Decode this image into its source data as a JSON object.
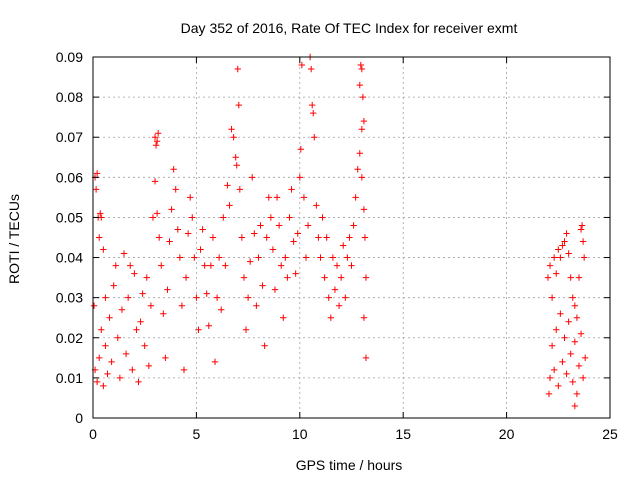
{
  "chart_data": {
    "type": "scatter",
    "title": "Day 352 of 2016, Rate Of TEC Index for receiver exmt",
    "xlabel": "GPS time / hours",
    "ylabel": "ROTI / TECUs",
    "xlim": [
      0,
      25
    ],
    "ylim": [
      0,
      0.09
    ],
    "xticks": [
      0,
      5,
      10,
      15,
      20,
      25
    ],
    "xtick_labels": [
      "0",
      "5",
      "10",
      "15",
      "20",
      "25"
    ],
    "yticks": [
      0,
      0.01,
      0.02,
      0.03,
      0.04,
      0.05,
      0.06,
      0.07,
      0.08,
      0.09
    ],
    "ytick_labels": [
      "0",
      "0.01",
      "0.02",
      "0.03",
      "0.04",
      "0.05",
      "0.06",
      "0.07",
      "0.08",
      "0.09"
    ],
    "grid": true,
    "marker": "plus",
    "color": "#ff0000",
    "series": [
      {
        "points": [
          [
            0.05,
            0.028
          ],
          [
            0.1,
            0.06
          ],
          [
            0.15,
            0.057
          ],
          [
            0.2,
            0.061
          ],
          [
            0.25,
            0.05
          ],
          [
            0.3,
            0.045
          ],
          [
            0.35,
            0.051
          ],
          [
            0.4,
            0.05
          ],
          [
            0.5,
            0.042
          ],
          [
            0.6,
            0.03
          ],
          [
            0.1,
            0.012
          ],
          [
            0.2,
            0.009
          ],
          [
            0.3,
            0.015
          ],
          [
            0.4,
            0.022
          ],
          [
            0.5,
            0.008
          ],
          [
            0.6,
            0.018
          ],
          [
            0.7,
            0.011
          ],
          [
            0.8,
            0.025
          ],
          [
            0.9,
            0.014
          ],
          [
            1.0,
            0.033
          ],
          [
            1.1,
            0.038
          ],
          [
            1.2,
            0.02
          ],
          [
            1.3,
            0.01
          ],
          [
            1.4,
            0.027
          ],
          [
            1.5,
            0.041
          ],
          [
            1.6,
            0.016
          ],
          [
            1.7,
            0.03
          ],
          [
            1.8,
            0.038
          ],
          [
            1.9,
            0.012
          ],
          [
            2.0,
            0.036
          ],
          [
            2.1,
            0.022
          ],
          [
            2.2,
            0.009
          ],
          [
            2.3,
            0.024
          ],
          [
            2.4,
            0.031
          ],
          [
            2.5,
            0.018
          ],
          [
            2.6,
            0.035
          ],
          [
            2.7,
            0.013
          ],
          [
            2.8,
            0.028
          ],
          [
            2.9,
            0.05
          ],
          [
            3.0,
            0.07
          ],
          [
            3.05,
            0.068
          ],
          [
            3.1,
            0.069
          ],
          [
            3.15,
            0.071
          ],
          [
            3.0,
            0.059
          ],
          [
            3.1,
            0.051
          ],
          [
            3.2,
            0.045
          ],
          [
            3.3,
            0.038
          ],
          [
            3.4,
            0.026
          ],
          [
            3.5,
            0.015
          ],
          [
            3.6,
            0.032
          ],
          [
            3.7,
            0.044
          ],
          [
            3.8,
            0.052
          ],
          [
            3.9,
            0.062
          ],
          [
            4.0,
            0.057
          ],
          [
            4.1,
            0.047
          ],
          [
            4.2,
            0.04
          ],
          [
            4.3,
            0.028
          ],
          [
            4.4,
            0.012
          ],
          [
            4.5,
            0.035
          ],
          [
            4.6,
            0.046
          ],
          [
            4.7,
            0.055
          ],
          [
            4.8,
            0.05
          ],
          [
            4.9,
            0.04
          ],
          [
            5.0,
            0.03
          ],
          [
            5.1,
            0.022
          ],
          [
            5.2,
            0.042
          ],
          [
            5.3,
            0.047
          ],
          [
            5.4,
            0.038
          ],
          [
            5.5,
            0.031
          ],
          [
            5.6,
            0.023
          ],
          [
            5.7,
            0.038
          ],
          [
            5.8,
            0.045
          ],
          [
            5.9,
            0.014
          ],
          [
            6.0,
            0.03
          ],
          [
            6.1,
            0.04
          ],
          [
            6.2,
            0.027
          ],
          [
            6.3,
            0.05
          ],
          [
            6.4,
            0.038
          ],
          [
            6.5,
            0.058
          ],
          [
            6.6,
            0.053
          ],
          [
            6.7,
            0.072
          ],
          [
            6.8,
            0.07
          ],
          [
            6.9,
            0.065
          ],
          [
            6.95,
            0.063
          ],
          [
            7.0,
            0.087
          ],
          [
            7.05,
            0.078
          ],
          [
            7.1,
            0.057
          ],
          [
            7.2,
            0.045
          ],
          [
            7.3,
            0.035
          ],
          [
            7.4,
            0.022
          ],
          [
            7.5,
            0.03
          ],
          [
            7.6,
            0.039
          ],
          [
            7.7,
            0.06
          ],
          [
            7.8,
            0.046
          ],
          [
            7.9,
            0.028
          ],
          [
            8.0,
            0.04
          ],
          [
            8.1,
            0.048
          ],
          [
            8.2,
            0.033
          ],
          [
            8.3,
            0.018
          ],
          [
            8.4,
            0.045
          ],
          [
            8.5,
            0.055
          ],
          [
            8.6,
            0.05
          ],
          [
            8.7,
            0.042
          ],
          [
            8.8,
            0.032
          ],
          [
            8.9,
            0.055
          ],
          [
            9.0,
            0.048
          ],
          [
            9.1,
            0.038
          ],
          [
            9.2,
            0.025
          ],
          [
            9.3,
            0.04
          ],
          [
            9.4,
            0.035
          ],
          [
            9.5,
            0.05
          ],
          [
            9.6,
            0.057
          ],
          [
            9.7,
            0.044
          ],
          [
            9.8,
            0.036
          ],
          [
            9.9,
            0.046
          ],
          [
            10.0,
            0.06
          ],
          [
            10.05,
            0.067
          ],
          [
            10.1,
            0.088
          ],
          [
            10.2,
            0.055
          ],
          [
            10.3,
            0.04
          ],
          [
            10.4,
            0.048
          ],
          [
            10.5,
            0.09
          ],
          [
            10.55,
            0.087
          ],
          [
            10.6,
            0.078
          ],
          [
            10.65,
            0.076
          ],
          [
            10.7,
            0.07
          ],
          [
            10.8,
            0.053
          ],
          [
            10.9,
            0.045
          ],
          [
            11.0,
            0.04
          ],
          [
            11.1,
            0.05
          ],
          [
            11.2,
            0.035
          ],
          [
            11.3,
            0.045
          ],
          [
            11.4,
            0.03
          ],
          [
            11.5,
            0.025
          ],
          [
            11.6,
            0.04
          ],
          [
            11.7,
            0.032
          ],
          [
            11.8,
            0.038
          ],
          [
            11.9,
            0.028
          ],
          [
            12.0,
            0.035
          ],
          [
            12.1,
            0.043
          ],
          [
            12.2,
            0.03
          ],
          [
            12.3,
            0.04
          ],
          [
            12.4,
            0.045
          ],
          [
            12.5,
            0.038
          ],
          [
            12.6,
            0.048
          ],
          [
            12.7,
            0.055
          ],
          [
            12.8,
            0.062
          ],
          [
            12.9,
            0.083
          ],
          [
            12.95,
            0.088
          ],
          [
            13.0,
            0.087
          ],
          [
            13.05,
            0.08
          ],
          [
            13.1,
            0.074
          ],
          [
            13.0,
            0.072
          ],
          [
            12.9,
            0.066
          ],
          [
            13.0,
            0.06
          ],
          [
            13.1,
            0.052
          ],
          [
            13.15,
            0.045
          ],
          [
            13.2,
            0.035
          ],
          [
            13.1,
            0.025
          ],
          [
            13.2,
            0.015
          ],
          [
            22.0,
            0.035
          ],
          [
            22.1,
            0.038
          ],
          [
            22.2,
            0.03
          ],
          [
            22.3,
            0.04
          ],
          [
            22.4,
            0.036
          ],
          [
            22.5,
            0.042
          ],
          [
            22.6,
            0.04
          ],
          [
            22.7,
            0.043
          ],
          [
            22.8,
            0.044
          ],
          [
            22.9,
            0.046
          ],
          [
            23.0,
            0.041
          ],
          [
            23.1,
            0.035
          ],
          [
            23.2,
            0.03
          ],
          [
            23.3,
            0.028
          ],
          [
            23.4,
            0.025
          ],
          [
            23.5,
            0.035
          ],
          [
            23.6,
            0.047
          ],
          [
            23.65,
            0.048
          ],
          [
            23.7,
            0.044
          ],
          [
            23.75,
            0.04
          ],
          [
            22.1,
            0.01
          ],
          [
            22.2,
            0.018
          ],
          [
            22.3,
            0.012
          ],
          [
            22.4,
            0.022
          ],
          [
            22.5,
            0.008
          ],
          [
            22.6,
            0.026
          ],
          [
            22.7,
            0.014
          ],
          [
            22.8,
            0.02
          ],
          [
            22.9,
            0.011
          ],
          [
            23.0,
            0.024
          ],
          [
            23.1,
            0.016
          ],
          [
            23.2,
            0.009
          ],
          [
            23.3,
            0.019
          ],
          [
            23.4,
            0.006
          ],
          [
            23.5,
            0.013
          ],
          [
            23.6,
            0.021
          ],
          [
            23.7,
            0.01
          ],
          [
            23.8,
            0.015
          ],
          [
            22.05,
            0.006
          ],
          [
            23.3,
            0.003
          ]
        ]
      }
    ]
  }
}
